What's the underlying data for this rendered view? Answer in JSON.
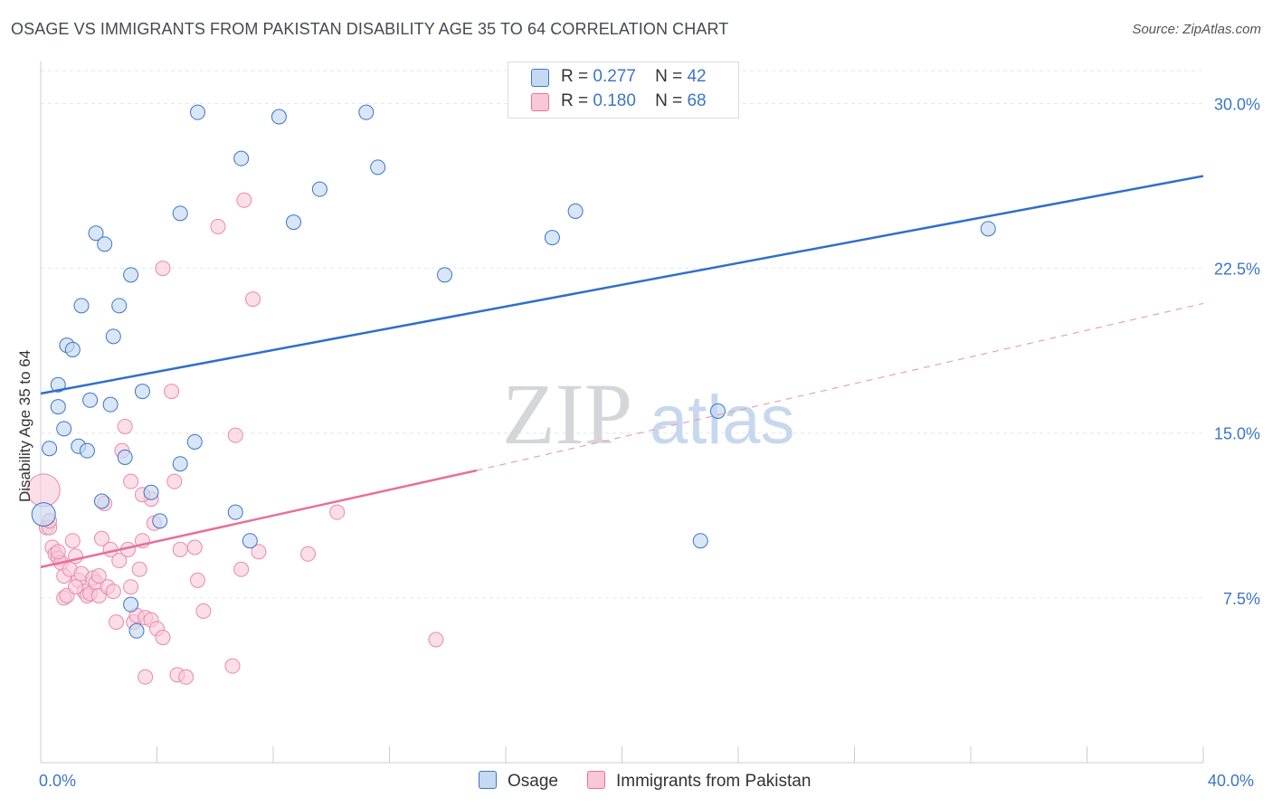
{
  "title": "OSAGE VS IMMIGRANTS FROM PAKISTAN DISABILITY AGE 35 TO 64 CORRELATION CHART",
  "source": "Source: ZipAtlas.com",
  "watermark": {
    "zip": "ZIP",
    "atlas": "atlas"
  },
  "legend": {
    "r_label": "R =",
    "n_label": "N =",
    "series": [
      {
        "name": "Osage",
        "r": "0.277",
        "n": "42"
      },
      {
        "name": "Immigrants from Pakistan",
        "r": "0.180",
        "n": "68"
      }
    ]
  },
  "chart_data": {
    "type": "scatter",
    "ylabel": "Disability Age 35 to 64",
    "xlim": [
      0,
      40
    ],
    "ylim": [
      0,
      31.5
    ],
    "x_tick_labels": [
      "0.0%",
      "40.0%"
    ],
    "y_ticks": [
      7.5,
      15.0,
      22.5,
      30.0
    ],
    "y_tick_labels": [
      "7.5%",
      "15.0%",
      "22.5%",
      "30.0%"
    ],
    "grid": true,
    "legend_position": "top-center and bottom",
    "colors": {
      "osage": "#3b76c6",
      "pakistan": "#e86f9c",
      "osage_fill": "#c5d9f3",
      "pakistan_fill": "#f8c8d8"
    },
    "series": [
      {
        "name": "Osage",
        "trend": {
          "x": [
            0,
            40
          ],
          "y": [
            16.8,
            26.7
          ]
        },
        "points": [
          [
            0.3,
            14.3
          ],
          [
            0.6,
            16.2
          ],
          [
            0.6,
            17.2
          ],
          [
            0.8,
            15.2
          ],
          [
            0.9,
            19.0
          ],
          [
            1.1,
            18.8
          ],
          [
            1.3,
            14.4
          ],
          [
            1.4,
            20.8
          ],
          [
            1.6,
            14.2
          ],
          [
            1.7,
            16.5
          ],
          [
            1.9,
            24.1
          ],
          [
            2.1,
            11.9
          ],
          [
            2.2,
            23.6
          ],
          [
            2.4,
            16.3
          ],
          [
            2.5,
            19.4
          ],
          [
            2.7,
            20.8
          ],
          [
            2.9,
            13.9
          ],
          [
            3.1,
            7.2
          ],
          [
            3.1,
            22.2
          ],
          [
            3.3,
            6.0
          ],
          [
            3.5,
            16.9
          ],
          [
            3.8,
            12.3
          ],
          [
            4.1,
            11.0
          ],
          [
            4.8,
            13.6
          ],
          [
            4.8,
            25.0
          ],
          [
            5.3,
            14.6
          ],
          [
            5.4,
            29.6
          ],
          [
            6.7,
            11.4
          ],
          [
            6.9,
            27.5
          ],
          [
            7.2,
            10.1
          ],
          [
            8.2,
            29.4
          ],
          [
            8.7,
            24.6
          ],
          [
            9.6,
            26.1
          ],
          [
            11.2,
            29.6
          ],
          [
            11.6,
            27.1
          ],
          [
            13.9,
            22.2
          ],
          [
            17.6,
            23.9
          ],
          [
            18.4,
            25.1
          ],
          [
            22.7,
            10.1
          ],
          [
            23.3,
            16.0
          ],
          [
            32.6,
            24.3
          ],
          [
            0.1,
            11.3
          ]
        ]
      },
      {
        "name": "Immigrants from Pakistan",
        "trend": {
          "x": [
            0,
            15
          ],
          "y": [
            8.9,
            13.3
          ]
        },
        "trend_extension": {
          "x": [
            15,
            40
          ],
          "y": [
            13.3,
            20.9
          ]
        },
        "points": [
          [
            0.1,
            12.4
          ],
          [
            0.2,
            10.7
          ],
          [
            0.3,
            10.7
          ],
          [
            0.4,
            9.8
          ],
          [
            0.5,
            9.5
          ],
          [
            0.6,
            9.3
          ],
          [
            0.7,
            9.1
          ],
          [
            0.8,
            7.5
          ],
          [
            0.8,
            8.5
          ],
          [
            0.9,
            7.6
          ],
          [
            1.0,
            8.8
          ],
          [
            1.1,
            10.1
          ],
          [
            1.2,
            9.4
          ],
          [
            1.3,
            8.3
          ],
          [
            1.4,
            8.6
          ],
          [
            1.5,
            7.8
          ],
          [
            1.6,
            7.6
          ],
          [
            1.7,
            7.7
          ],
          [
            1.8,
            8.4
          ],
          [
            1.9,
            8.2
          ],
          [
            2.0,
            7.6
          ],
          [
            2.1,
            10.2
          ],
          [
            2.2,
            11.8
          ],
          [
            2.3,
            8.0
          ],
          [
            2.4,
            9.7
          ],
          [
            2.5,
            7.8
          ],
          [
            2.6,
            6.4
          ],
          [
            2.7,
            9.2
          ],
          [
            2.8,
            14.2
          ],
          [
            2.9,
            15.3
          ],
          [
            3.0,
            9.7
          ],
          [
            3.1,
            12.8
          ],
          [
            3.1,
            8.0
          ],
          [
            3.2,
            6.4
          ],
          [
            3.3,
            6.7
          ],
          [
            3.4,
            8.8
          ],
          [
            3.5,
            10.1
          ],
          [
            3.6,
            6.6
          ],
          [
            3.6,
            3.9
          ],
          [
            3.8,
            12.0
          ],
          [
            3.8,
            6.5
          ],
          [
            3.9,
            10.9
          ],
          [
            4.0,
            6.1
          ],
          [
            4.2,
            5.7
          ],
          [
            4.2,
            22.5
          ],
          [
            4.5,
            16.9
          ],
          [
            4.6,
            12.8
          ],
          [
            4.7,
            4.0
          ],
          [
            4.8,
            9.7
          ],
          [
            5.0,
            3.9
          ],
          [
            5.3,
            9.8
          ],
          [
            5.4,
            8.3
          ],
          [
            5.6,
            6.9
          ],
          [
            6.1,
            24.4
          ],
          [
            6.6,
            4.4
          ],
          [
            6.7,
            14.9
          ],
          [
            6.9,
            8.8
          ],
          [
            7.0,
            25.6
          ],
          [
            7.3,
            21.1
          ],
          [
            7.5,
            9.6
          ],
          [
            9.2,
            9.5
          ],
          [
            10.2,
            11.4
          ],
          [
            13.6,
            5.6
          ],
          [
            0.3,
            11.0
          ],
          [
            0.6,
            9.6
          ],
          [
            1.2,
            8.0
          ],
          [
            2.0,
            8.5
          ],
          [
            3.5,
            12.2
          ]
        ]
      }
    ]
  }
}
